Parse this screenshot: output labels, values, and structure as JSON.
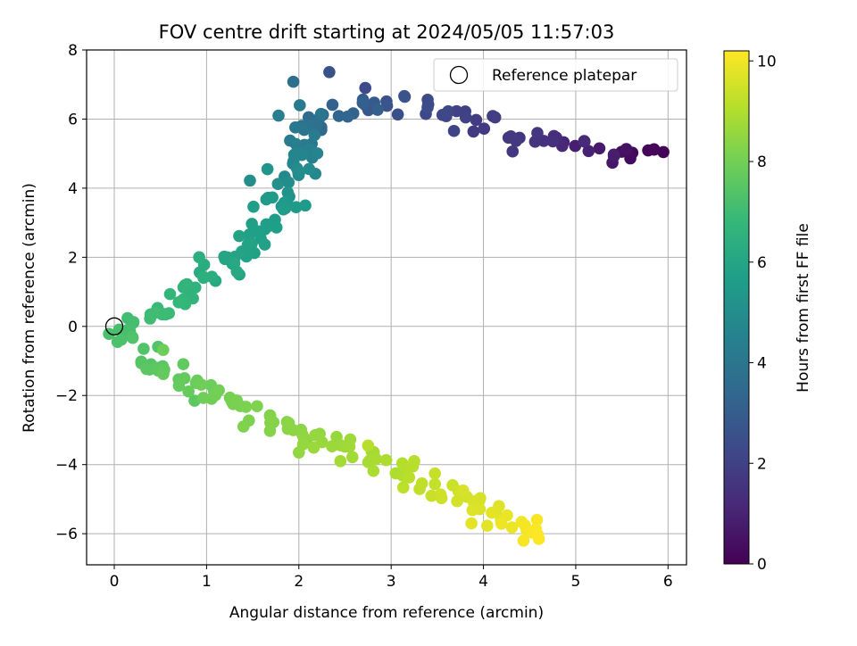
{
  "chart_data": {
    "type": "scatter",
    "title": "FOV centre drift starting at 2024/05/05 11:57:03",
    "xlabel": "Angular distance from reference (arcmin)",
    "ylabel": "Rotation from reference (arcmin)",
    "xlim": [
      -0.3,
      6.2
    ],
    "ylim": [
      -6.9,
      8.0
    ],
    "xticks": [
      0,
      1,
      2,
      3,
      4,
      5,
      6
    ],
    "yticks": [
      -6,
      -4,
      -2,
      0,
      2,
      4,
      6,
      8
    ],
    "grid": true,
    "legend": {
      "placement": "top-right",
      "entries": [
        "Reference platepar"
      ]
    },
    "reference_point": {
      "x": 0,
      "y": 0
    },
    "colorbar": {
      "label": "Hours from first FF file",
      "colormap": "viridis",
      "range": [
        0,
        10.2
      ],
      "ticks": [
        0,
        2,
        4,
        6,
        8,
        10
      ]
    },
    "colormap_stops": [
      "#440154",
      "#482878",
      "#3e4989",
      "#31688e",
      "#26828e",
      "#1f9e89",
      "#35b779",
      "#6ece58",
      "#b5de2b",
      "#fde725"
    ],
    "key_path": [
      {
        "t": 0.0,
        "x": 5.93,
        "y": 5.02
      },
      {
        "t": 0.3,
        "x": 5.6,
        "y": 4.95
      },
      {
        "t": 0.8,
        "x": 5.2,
        "y": 5.15
      },
      {
        "t": 1.3,
        "x": 4.8,
        "y": 5.35
      },
      {
        "t": 1.6,
        "x": 4.4,
        "y": 5.5
      },
      {
        "t": 1.9,
        "x": 3.9,
        "y": 5.85
      },
      {
        "t": 2.4,
        "x": 3.3,
        "y": 6.35
      },
      {
        "t": 2.9,
        "x": 2.8,
        "y": 6.4
      },
      {
        "t": 3.5,
        "x": 2.3,
        "y": 5.9
      },
      {
        "t": 4.0,
        "x": 2.0,
        "y": 5.6
      },
      {
        "t": 4.6,
        "x": 2.1,
        "y": 4.9
      },
      {
        "t": 5.1,
        "x": 1.9,
        "y": 4.0
      },
      {
        "t": 5.6,
        "x": 1.75,
        "y": 3.4
      },
      {
        "t": 6.0,
        "x": 1.25,
        "y": 1.7
      },
      {
        "t": 6.5,
        "x": 0.9,
        "y": 1.2
      },
      {
        "t": 6.8,
        "x": 0.6,
        "y": 0.6
      },
      {
        "t": 7.05,
        "x": 0.3,
        "y": 0.1
      },
      {
        "t": 7.25,
        "x": 0.1,
        "y": -0.4
      },
      {
        "t": 7.5,
        "x": 0.4,
        "y": -1.0
      },
      {
        "t": 7.8,
        "x": 0.8,
        "y": -1.6
      },
      {
        "t": 8.1,
        "x": 1.3,
        "y": -2.3
      },
      {
        "t": 8.4,
        "x": 1.9,
        "y": -3.0
      },
      {
        "t": 8.7,
        "x": 2.5,
        "y": -3.6
      },
      {
        "t": 9.0,
        "x": 3.1,
        "y": -4.2
      },
      {
        "t": 9.4,
        "x": 3.6,
        "y": -4.7
      },
      {
        "t": 9.7,
        "x": 4.0,
        "y": -5.3
      },
      {
        "t": 10.0,
        "x": 4.4,
        "y": -5.7
      },
      {
        "t": 10.2,
        "x": 4.6,
        "y": -6.15
      }
    ],
    "extra_points": [
      {
        "t": 3.7,
        "x": 1.94,
        "y": 7.08
      },
      {
        "t": 2.6,
        "x": 2.33,
        "y": 7.36
      },
      {
        "t": 2.3,
        "x": 2.72,
        "y": 6.9
      },
      {
        "t": 4.0,
        "x": 2.24,
        "y": 6.15
      },
      {
        "t": 4.3,
        "x": 1.78,
        "y": 6.1
      },
      {
        "t": 4.2,
        "x": 2.01,
        "y": 6.4
      },
      {
        "t": 5.0,
        "x": 1.47,
        "y": 4.22
      },
      {
        "t": 5.3,
        "x": 1.66,
        "y": 4.55
      },
      {
        "t": 5.6,
        "x": 2.07,
        "y": 3.5
      },
      {
        "t": 5.5,
        "x": 1.97,
        "y": 3.45
      },
      {
        "t": 6.4,
        "x": 0.92,
        "y": 2.0
      },
      {
        "t": 5.9,
        "x": 1.2,
        "y": 1.95
      },
      {
        "t": 7.9,
        "x": 0.53,
        "y": -0.68
      },
      {
        "t": 7.6,
        "x": 0.87,
        "y": -2.15
      },
      {
        "t": 8.2,
        "x": 1.4,
        "y": -2.9
      },
      {
        "t": 8.5,
        "x": 2.0,
        "y": -3.65
      },
      {
        "t": 8.8,
        "x": 2.45,
        "y": -3.9
      },
      {
        "t": 9.1,
        "x": 2.75,
        "y": -3.45
      },
      {
        "t": 9.1,
        "x": 3.25,
        "y": -3.9
      },
      {
        "t": 9.6,
        "x": 3.78,
        "y": -4.75
      },
      {
        "t": 9.8,
        "x": 3.87,
        "y": -5.7
      },
      {
        "t": 10.1,
        "x": 4.58,
        "y": -5.6
      }
    ]
  }
}
